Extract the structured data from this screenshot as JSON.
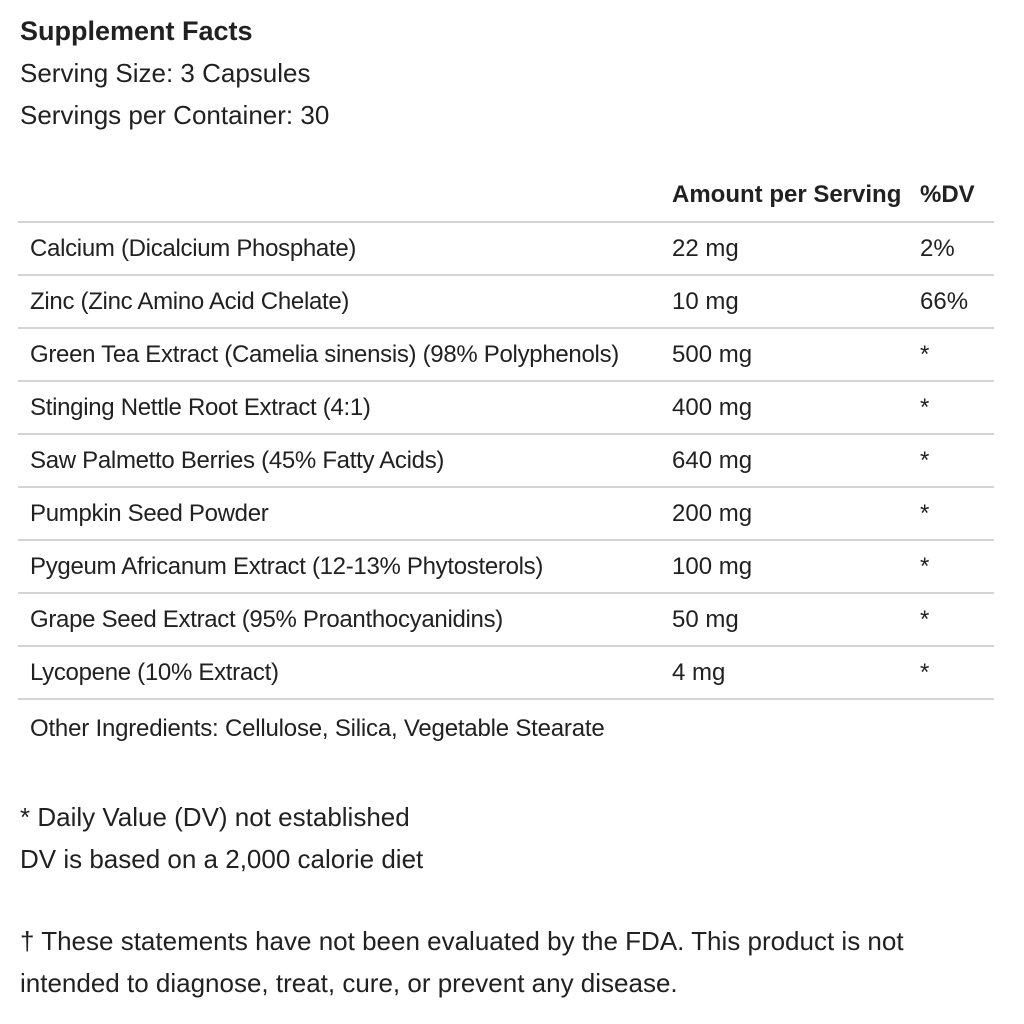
{
  "label": {
    "title": "Supplement Facts",
    "serving_size": "Serving Size: 3 Capsules",
    "servings_per_container": "Servings per Container: 30"
  },
  "table": {
    "columns": {
      "amount": "Amount per Serving",
      "dv": "%DV"
    },
    "rows": [
      {
        "name": "Calcium (Dicalcium Phosphate)",
        "amount": "22 mg",
        "dv": "2%"
      },
      {
        "name": "Zinc (Zinc Amino Acid Chelate)",
        "amount": "10 mg",
        "dv": "66%"
      },
      {
        "name": "Green Tea Extract (Camelia sinensis) (98% Polyphenols)",
        "amount": "500 mg",
        "dv": "*"
      },
      {
        "name": "Stinging Nettle Root Extract (4:1)",
        "amount": "400 mg",
        "dv": "*"
      },
      {
        "name": "Saw Palmetto Berries (45% Fatty Acids)",
        "amount": "640 mg",
        "dv": "*"
      },
      {
        "name": "Pumpkin Seed Powder",
        "amount": "200 mg",
        "dv": "*"
      },
      {
        "name": "Pygeum Africanum Extract (12-13% Phytosterols)",
        "amount": "100 mg",
        "dv": "*"
      },
      {
        "name": "Grape Seed Extract (95% Proanthocyanidins)",
        "amount": "50 mg",
        "dv": "*"
      },
      {
        "name": "Lycopene (10% Extract)",
        "amount": "4 mg",
        "dv": "*"
      }
    ],
    "other_ingredients": "Other Ingredients: Cellulose, Silica, Vegetable Stearate"
  },
  "footnotes": {
    "dv_not_established": "* Daily Value (DV) not established",
    "dv_basis": "DV is based on a 2,000 calorie diet"
  },
  "disclaimer": "† These statements have not been evaluated by the FDA. This product is not intended to diagnose, treat, cure, or prevent any disease.",
  "colors": {
    "text-color": "#212121",
    "divider-color": "#d4d4d4",
    "bg-color": "#ffffff"
  }
}
